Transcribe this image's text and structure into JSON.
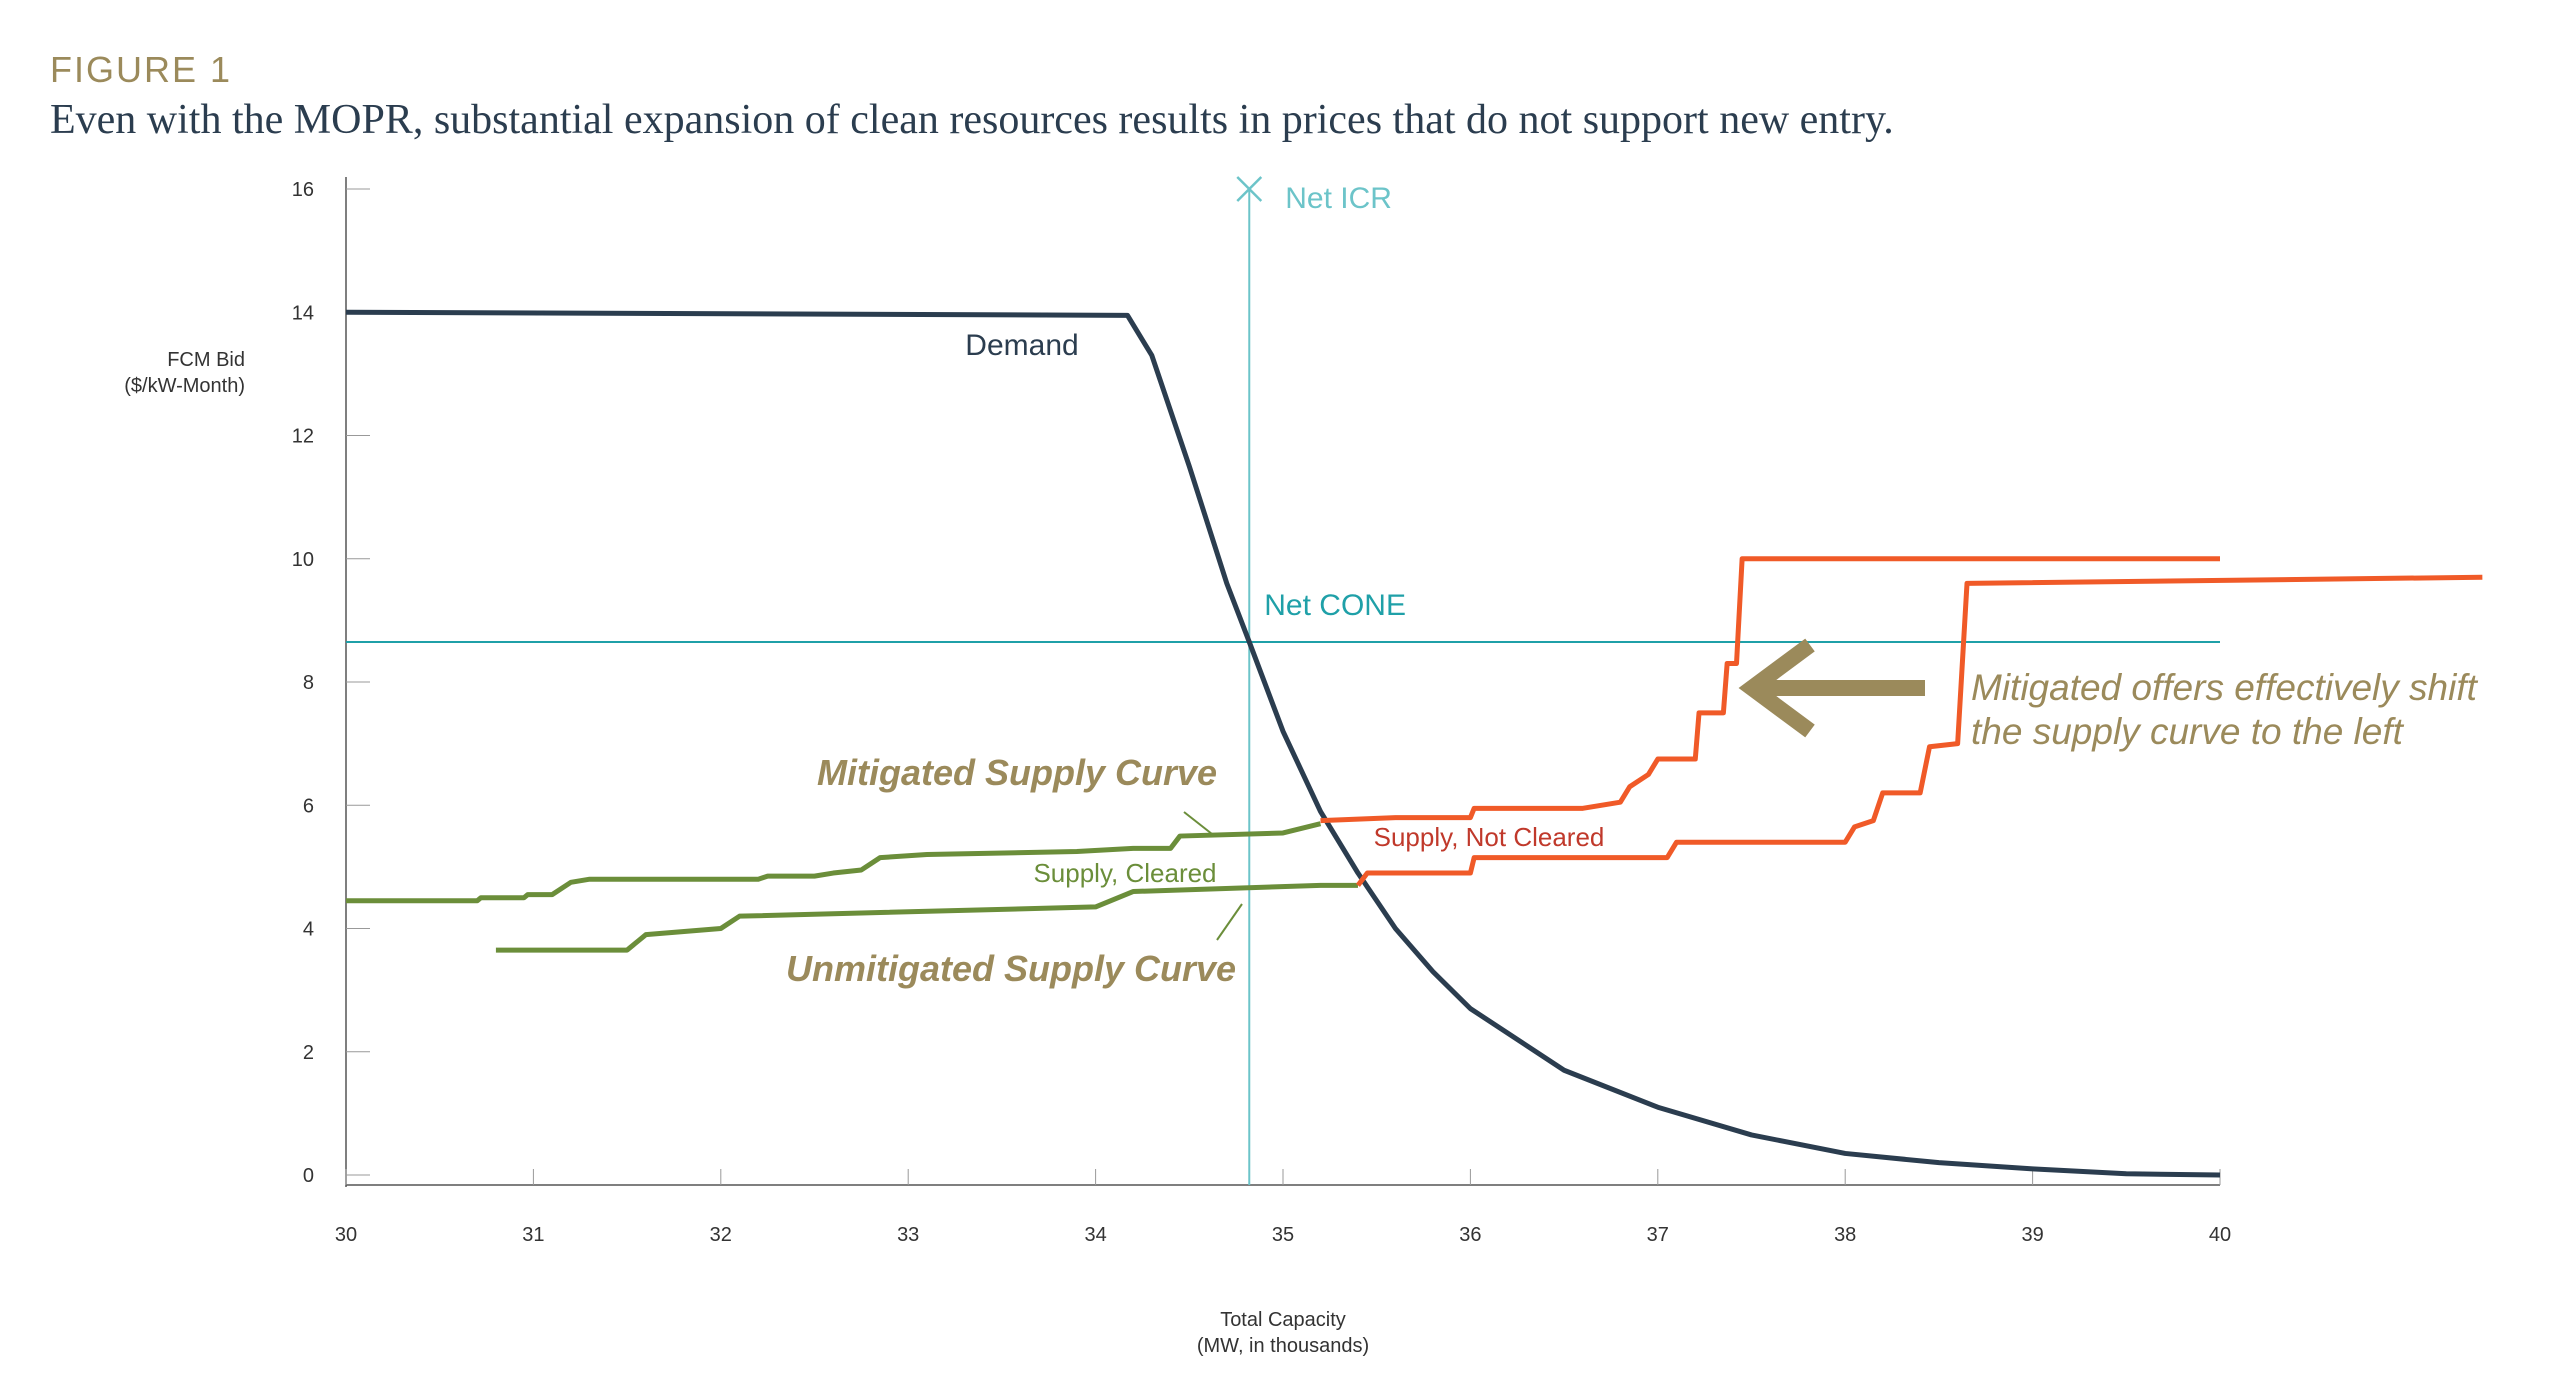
{
  "header": {
    "figure": "FIGURE 1",
    "title": "Even with the MOPR, substantial expansion of clean resources results in prices that do not support new entry."
  },
  "chart_data": {
    "type": "line",
    "ylabel": [
      "FCM Bid",
      "($/kW-Month)"
    ],
    "xlabel": [
      "Total Capacity",
      "(MW, in thousands)"
    ],
    "xlim": [
      30,
      40
    ],
    "xticks": [
      30,
      31,
      32,
      33,
      34,
      35,
      36,
      37,
      38,
      39,
      40
    ],
    "ylim": [
      0,
      16
    ],
    "yticks": [
      0,
      2,
      4,
      6,
      8,
      10,
      12,
      14,
      16
    ],
    "net_icr": {
      "label": "Net ICR",
      "x": 34.82,
      "color": "#6cc4c9"
    },
    "net_cone": {
      "label": "Net CONE",
      "y": 8.65,
      "color": "#1fa0a8"
    },
    "series": [
      {
        "name": "Demand",
        "color": "#2b3d4f",
        "x": [
          30,
          34.17,
          34.3,
          34.5,
          34.7,
          34.82,
          35,
          35.2,
          35.4,
          35.6,
          35.8,
          36,
          36.5,
          37,
          37.5,
          38,
          38.5,
          39,
          39.5,
          40
        ],
        "values": [
          14,
          13.95,
          13.3,
          11.5,
          9.6,
          8.65,
          7.2,
          5.9,
          4.9,
          4.0,
          3.3,
          2.7,
          1.7,
          1.1,
          0.65,
          0.35,
          0.2,
          0.1,
          0.02,
          0
        ]
      },
      {
        "name": "Mitigated Supply Curve",
        "color": "#6b8e3a",
        "x": [
          30,
          30.7,
          30.72,
          30.95,
          30.97,
          31.1,
          31.2,
          31.3,
          32.2,
          32.25,
          32.5,
          32.6,
          32.75,
          32.85,
          33.1,
          33.9,
          34.2,
          34.4,
          34.45,
          35.0,
          35.2
        ],
        "values": [
          4.45,
          4.45,
          4.5,
          4.5,
          4.55,
          4.55,
          4.75,
          4.8,
          4.8,
          4.85,
          4.85,
          4.9,
          4.95,
          5.15,
          5.2,
          5.25,
          5.3,
          5.3,
          5.5,
          5.55,
          5.7
        ]
      },
      {
        "name": "Unmitigated Supply Curve",
        "color": "#6b8e3a",
        "x": [
          30.8,
          31.5,
          31.6,
          32,
          32.1,
          34,
          34.2,
          35.2,
          35.4
        ],
        "values": [
          3.65,
          3.65,
          3.9,
          4.0,
          4.2,
          4.35,
          4.6,
          4.7,
          4.7
        ]
      },
      {
        "color": "#f05a28",
        "x": [
          35.2,
          35.6,
          36,
          36.02,
          36.6,
          36.8,
          36.85,
          36.95,
          37.0,
          37.2,
          37.22,
          37.35,
          37.37,
          37.42,
          37.45,
          40
        ],
        "values": [
          5.75,
          5.8,
          5.8,
          5.95,
          5.95,
          6.05,
          6.3,
          6.5,
          6.75,
          6.75,
          7.5,
          7.5,
          8.3,
          8.3,
          10.0,
          10.0
        ]
      },
      {
        "color": "#f05a28",
        "x": [
          35.4,
          35.45,
          36,
          36.02,
          37.05,
          37.1,
          38,
          38.05,
          38.15,
          38.2,
          38.4,
          38.45,
          38.6,
          38.65,
          41.4
        ],
        "values": [
          4.7,
          4.9,
          4.9,
          5.15,
          5.15,
          5.4,
          5.4,
          5.65,
          5.75,
          6.2,
          6.2,
          6.95,
          7.0,
          9.6,
          9.7
        ]
      }
    ],
    "annotations": {
      "cleared": "Supply, Cleared",
      "not_cleared": "Supply, Not Cleared",
      "shift": [
        "Mitigated offers effectively shift",
        "the supply curve to the left"
      ]
    }
  }
}
